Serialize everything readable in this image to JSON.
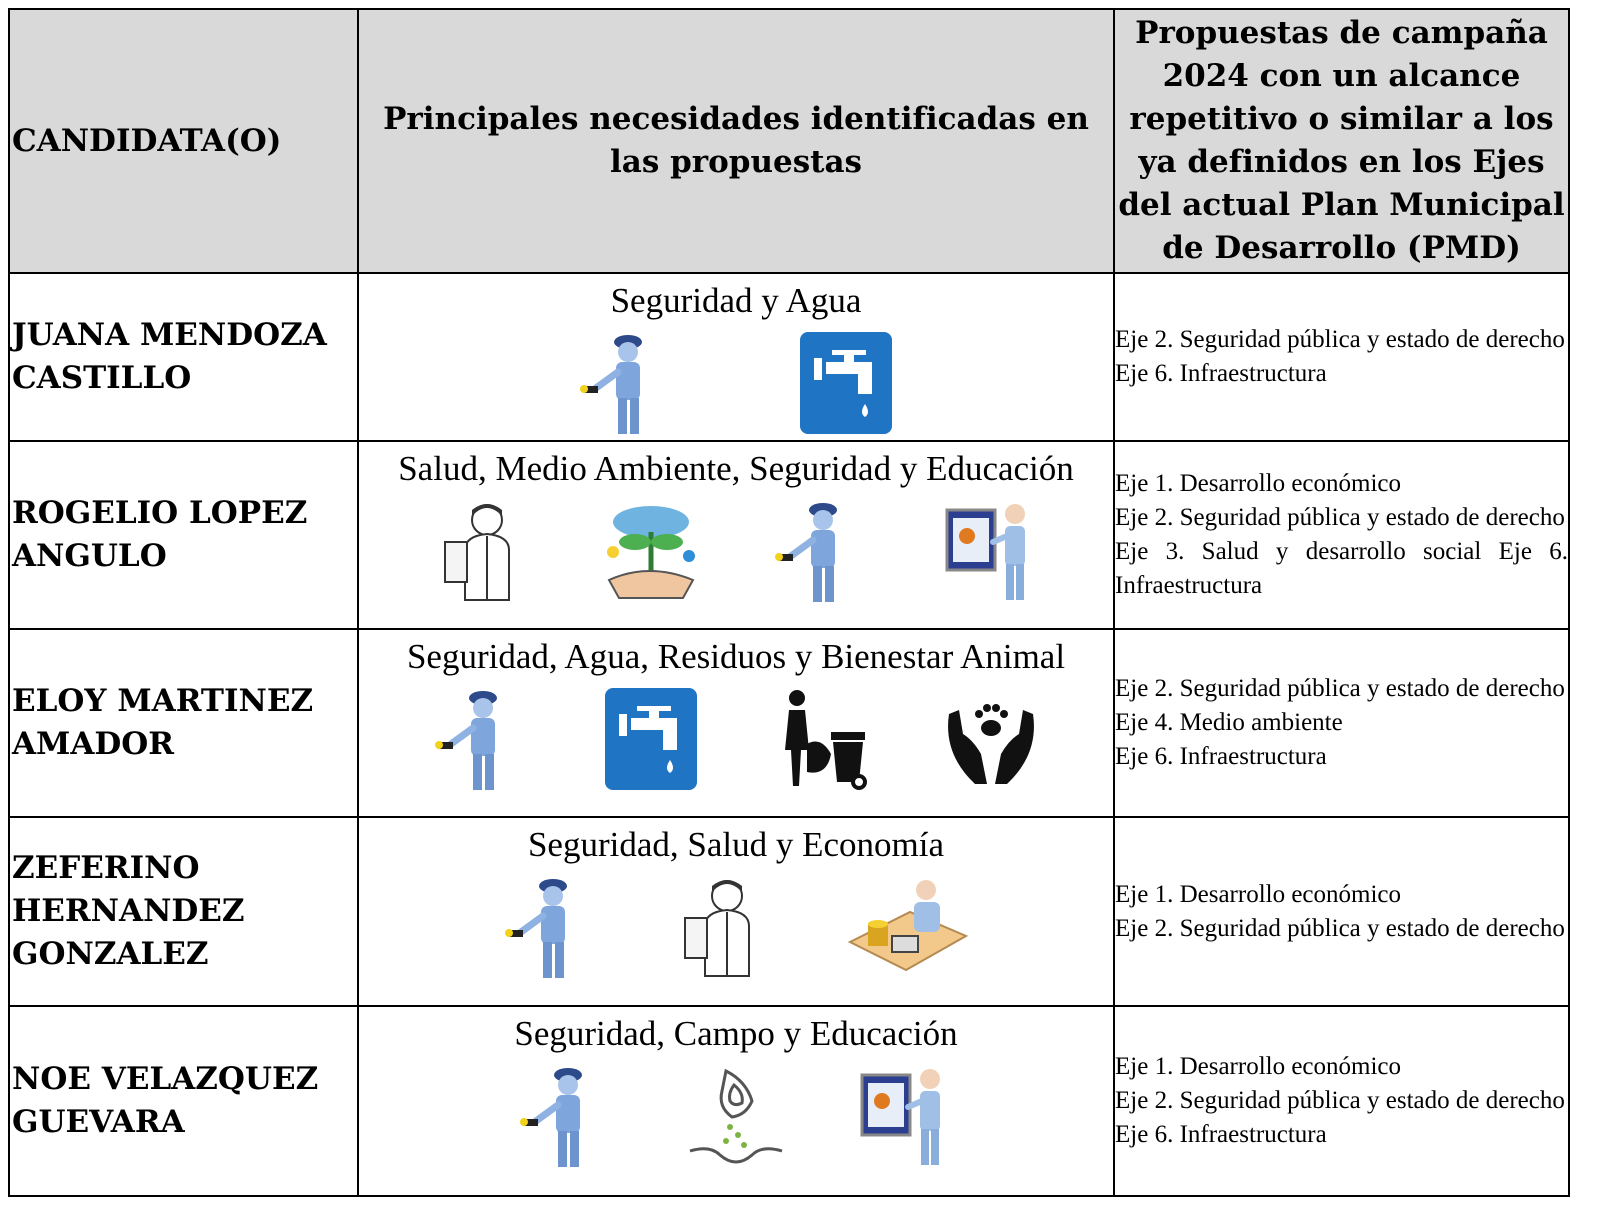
{
  "table": {
    "header": [
      "CANDIDATA(O)",
      "Principales necesidades identificadas en las propuestas",
      "Propuestas de campaña 2024 con un alcance repetitivo o similar a los ya definidos en los Ejes del actual Plan Municipal de Desarrollo (PMD)"
    ],
    "rows": [
      {
        "candidate": "JUANA MENDOZA CASTILLO",
        "needs": "Seguridad y Agua",
        "axes": [
          "Eje 2. Seguridad pública y estado de derecho",
          "Eje 6. Infraestructura"
        ]
      },
      {
        "candidate": "ROGELIO LOPEZ ANGULO",
        "needs": "Salud, Medio Ambiente, Seguridad y Educación",
        "axes": [
          "Eje 1. Desarrollo económico",
          "Eje 2. Seguridad pública y estado de derecho",
          "Eje 3. Salud y desarrollo social Eje 6.  Infraestructura"
        ]
      },
      {
        "candidate": "ELOY MARTINEZ AMADOR",
        "needs": "Seguridad, Agua, Residuos y Bienestar Animal",
        "axes": [
          "Eje 2. Seguridad pública y estado de derecho",
          "Eje 4. Medio ambiente",
          "Eje 6.  Infraestructura"
        ]
      },
      {
        "candidate": "ZEFERINO HERNANDEZ GONZALEZ",
        "needs": "Seguridad, Salud y Economía",
        "axes": [
          "Eje 1. Desarrollo económico",
          "Eje 2. Seguridad pública y estado de derecho"
        ]
      },
      {
        "candidate": "NOE VELAZQUEZ GUEVARA",
        "needs": "Seguridad, Campo y  Educación",
        "axes": [
          "Eje 1. Desarrollo económico",
          "Eje 2. Seguridad pública y estado de derecho",
          "Eje 6.  Infraestructura"
        ]
      }
    ]
  }
}
